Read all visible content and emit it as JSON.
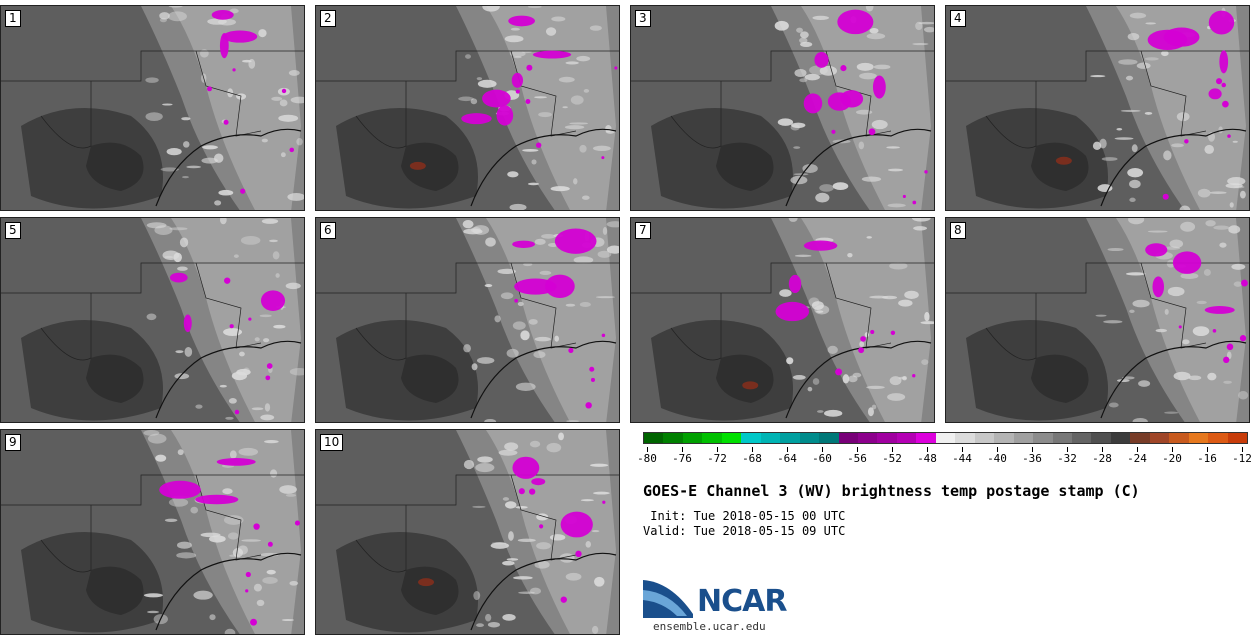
{
  "panels": [
    {
      "label": "1"
    },
    {
      "label": "2"
    },
    {
      "label": "3"
    },
    {
      "label": "4"
    },
    {
      "label": "5"
    },
    {
      "label": "6"
    },
    {
      "label": "7"
    },
    {
      "label": "8"
    },
    {
      "label": "9"
    },
    {
      "label": "10"
    }
  ],
  "colorbar": {
    "colors": [
      "#006400",
      "#008000",
      "#00a000",
      "#00c000",
      "#00e000",
      "#00c8c8",
      "#00b4b4",
      "#00a0a0",
      "#008c8c",
      "#007878",
      "#780078",
      "#8c008c",
      "#a000a0",
      "#b400b4",
      "#dc00dc",
      "#f0f0f0",
      "#dcdcdc",
      "#c8c8c8",
      "#b4b4b4",
      "#a0a0a0",
      "#8c8c8c",
      "#787878",
      "#646464",
      "#505050",
      "#3c3c3c",
      "#783c28",
      "#a04628",
      "#c85a1e",
      "#e6781e",
      "#dc5a14",
      "#c83c0a"
    ],
    "ticks": [
      "-80",
      "-76",
      "-72",
      "-68",
      "-64",
      "-60",
      "-56",
      "-52",
      "-48",
      "-44",
      "-40",
      "-36",
      "-32",
      "-28",
      "-24",
      "-20",
      "-16",
      "-12"
    ]
  },
  "title": "GOES-E Channel 3 (WV) brightness temp postage stamp (C)",
  "init_line": " Init: Tue 2018-05-15 00 UTC",
  "valid_line": "Valid: Tue 2018-05-15 09 UTC",
  "logo": {
    "name": "NCAR",
    "url": "ensemble.ucar.edu"
  }
}
